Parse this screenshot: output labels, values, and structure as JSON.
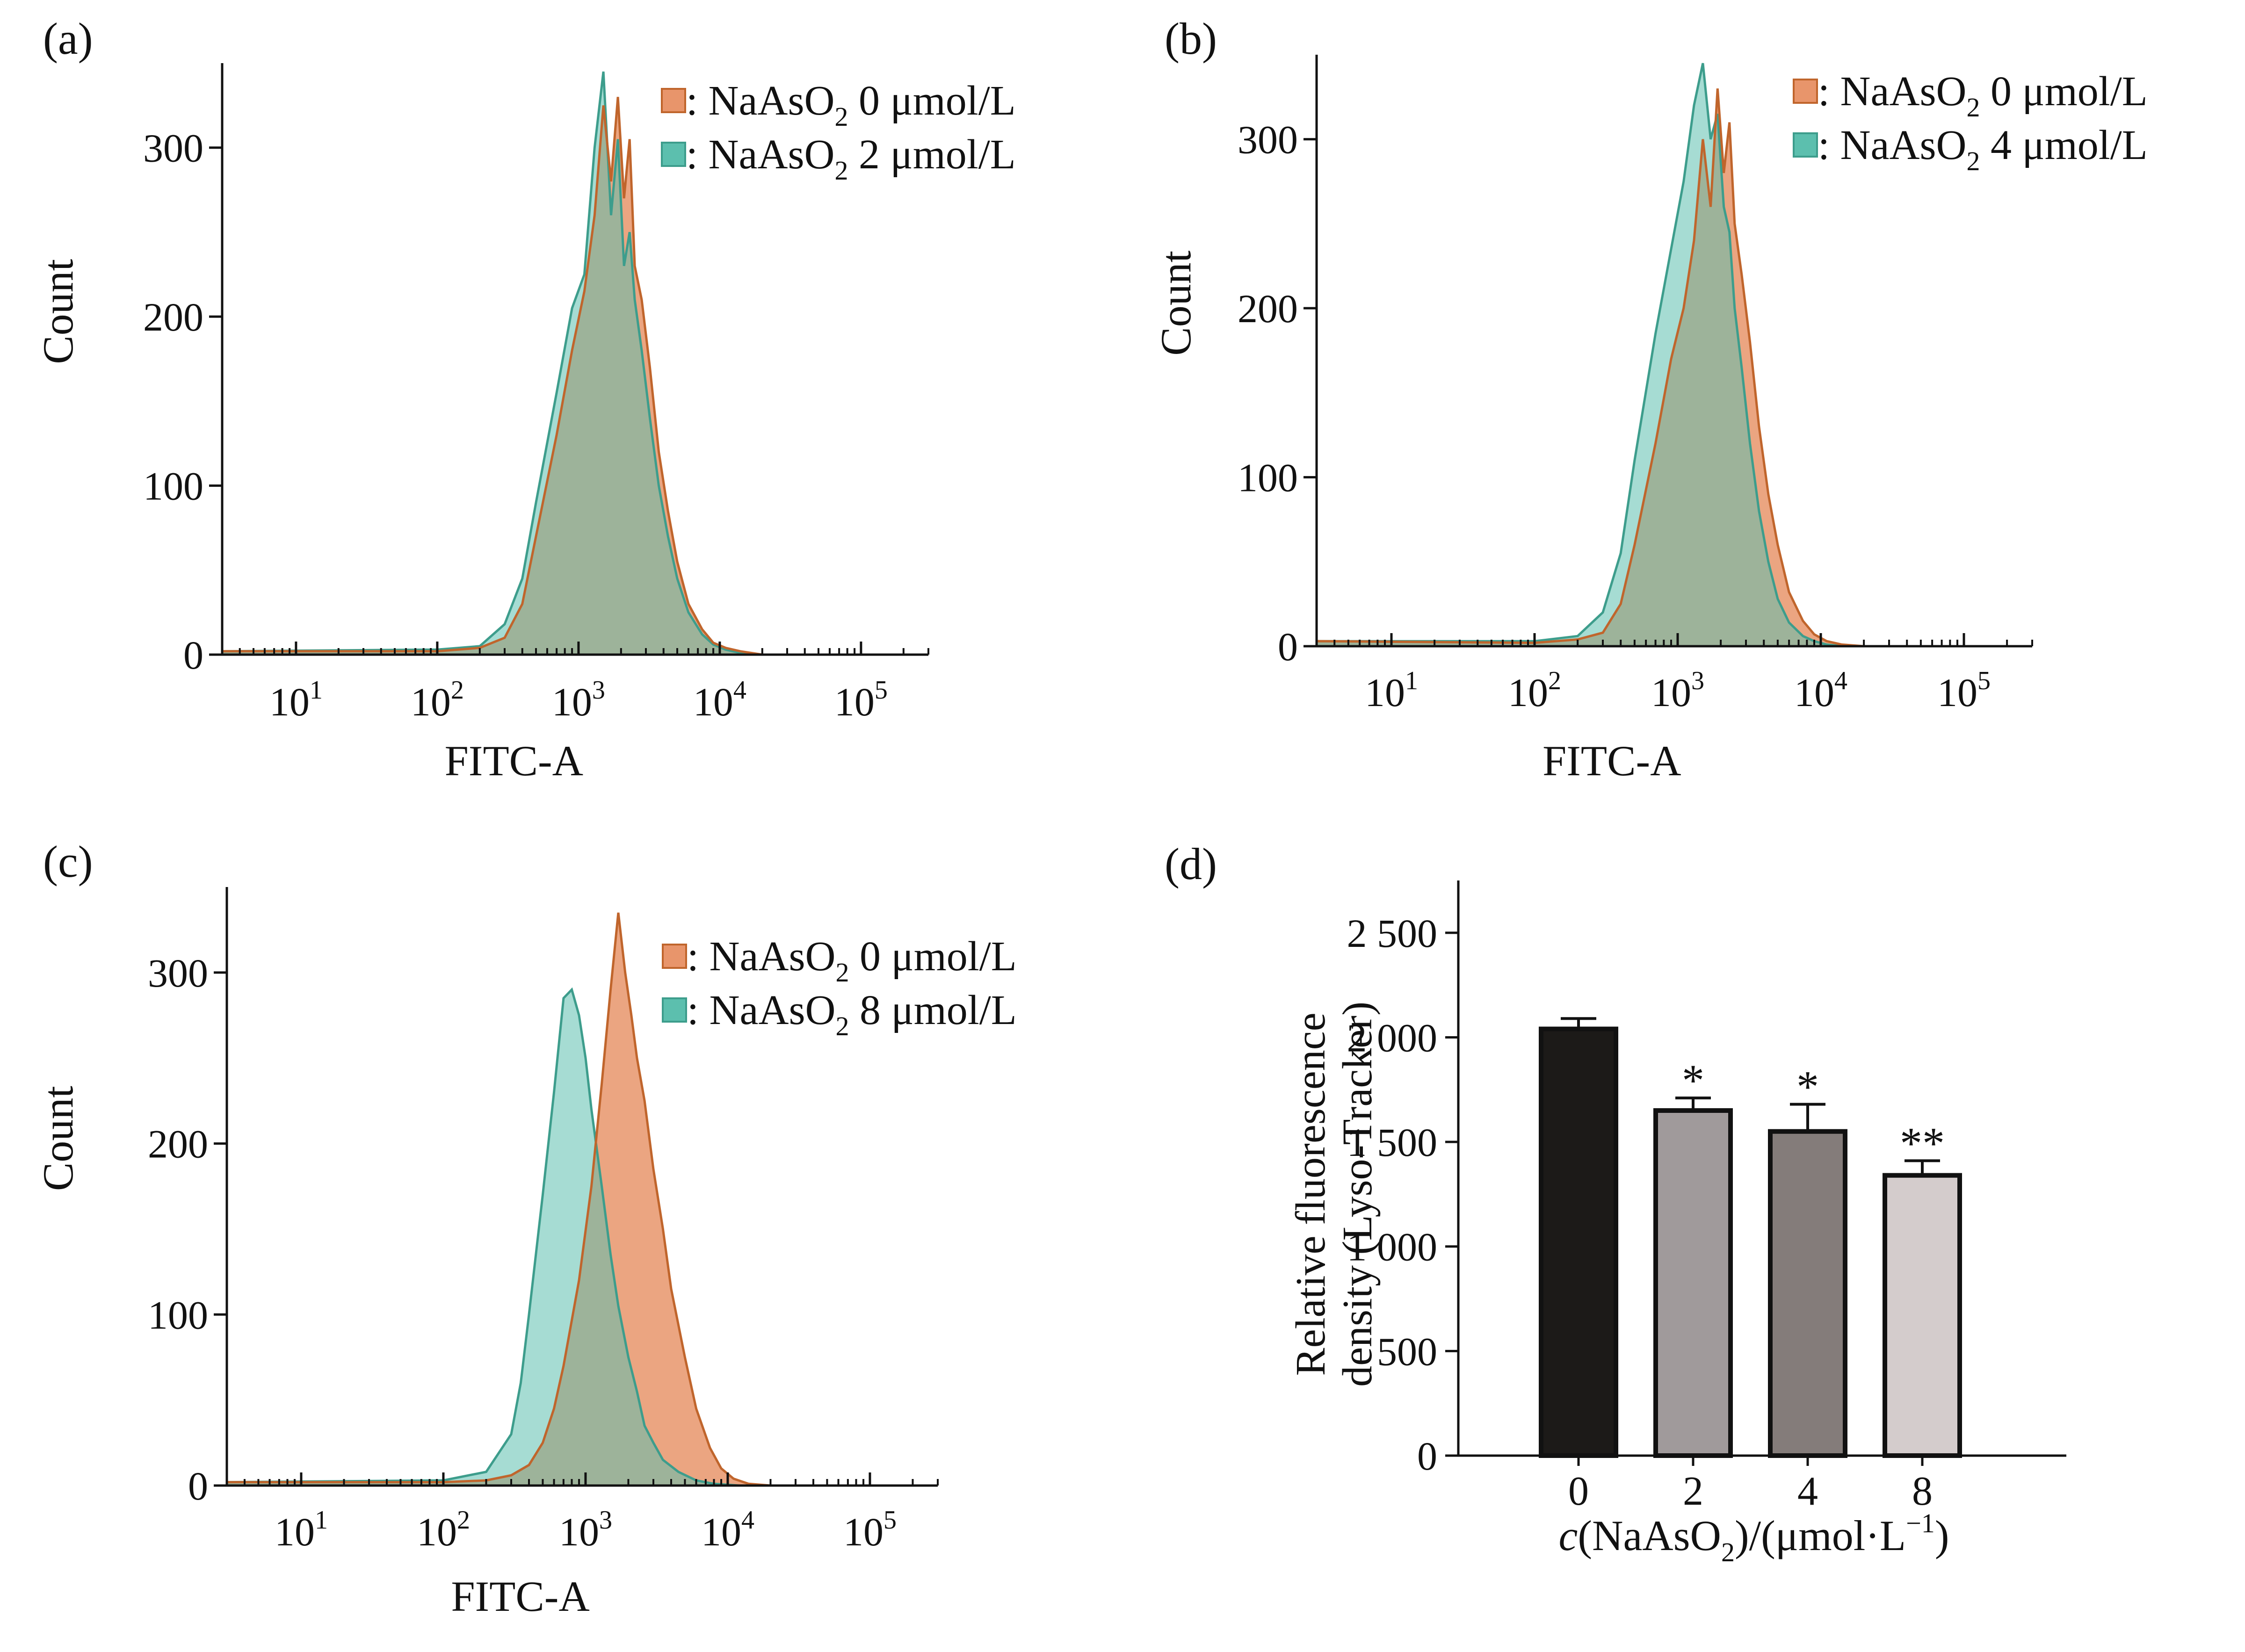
{
  "colors": {
    "control": "#e8956b",
    "control_edge": "#c0652c",
    "treated": "#5cbfae",
    "treated_edge": "#3d9d8c",
    "overlap": "#9e9a72",
    "axis": "#111111",
    "bars": [
      "#1c1a18",
      "#a09a9b",
      "#847c7a",
      "#d4cccc"
    ]
  },
  "chart_data": [
    {
      "type": "area",
      "panel_label": "(a)",
      "xlabel": "FITC-A",
      "ylabel": "Count",
      "x_scale": "log",
      "xlim": [
        3,
        300000
      ],
      "ylim": [
        0,
        350
      ],
      "x_ticks": [
        10,
        100,
        1000,
        10000,
        100000
      ],
      "x_tick_labels": [
        {
          "base": "10",
          "exp": "1"
        },
        {
          "base": "10",
          "exp": "2"
        },
        {
          "base": "10",
          "exp": "3"
        },
        {
          "base": "10",
          "exp": "4"
        },
        {
          "base": "10",
          "exp": "5"
        }
      ],
      "y_ticks": [
        0,
        100,
        200,
        300
      ],
      "legend": "top-right",
      "series": [
        {
          "name": {
            "pre": ": NaAsO",
            "sub": "2",
            "post": " 0 μmol/L"
          },
          "role": "control",
          "x": [
            3,
            100,
            200,
            300,
            400,
            500,
            700,
            900,
            1100,
            1300,
            1500,
            1700,
            1900,
            2100,
            2300,
            2500,
            2800,
            3200,
            3700,
            4300,
            5000,
            6000,
            7500,
            9000,
            11000,
            14000,
            20000
          ],
          "y": [
            2,
            2,
            4,
            10,
            30,
            70,
            130,
            180,
            215,
            260,
            325,
            280,
            330,
            270,
            305,
            230,
            210,
            170,
            120,
            85,
            55,
            30,
            15,
            7,
            4,
            2,
            0
          ]
        },
        {
          "name": {
            "pre": ": NaAsO",
            "sub": "2",
            "post": " 2 μmol/L"
          },
          "role": "treated",
          "x": [
            3,
            100,
            200,
            300,
            400,
            500,
            700,
            900,
            1100,
            1300,
            1500,
            1700,
            1900,
            2100,
            2300,
            2500,
            2800,
            3200,
            3700,
            4300,
            5000,
            6000,
            7500,
            9000,
            11000,
            14000,
            20000
          ],
          "y": [
            2,
            3,
            5,
            18,
            45,
            90,
            155,
            205,
            225,
            300,
            345,
            260,
            305,
            230,
            250,
            210,
            180,
            140,
            100,
            70,
            45,
            25,
            12,
            6,
            3,
            1,
            0
          ]
        }
      ]
    },
    {
      "type": "area",
      "panel_label": "(b)",
      "xlabel": "FITC-A",
      "ylabel": "Count",
      "x_scale": "log",
      "xlim": [
        3,
        300000
      ],
      "ylim": [
        0,
        350
      ],
      "x_ticks": [
        10,
        100,
        1000,
        10000,
        100000
      ],
      "x_tick_labels": [
        {
          "base": "10",
          "exp": "1"
        },
        {
          "base": "10",
          "exp": "2"
        },
        {
          "base": "10",
          "exp": "3"
        },
        {
          "base": "10",
          "exp": "4"
        },
        {
          "base": "10",
          "exp": "5"
        }
      ],
      "y_ticks": [
        0,
        100,
        200,
        300
      ],
      "legend": "top-right",
      "series": [
        {
          "name": {
            "pre": ": NaAsO",
            "sub": "2",
            "post": " 0 μmol/L"
          },
          "role": "control",
          "x": [
            3,
            100,
            200,
            300,
            400,
            500,
            700,
            900,
            1100,
            1300,
            1500,
            1700,
            1900,
            2100,
            2300,
            2500,
            2800,
            3200,
            3700,
            4300,
            5000,
            6000,
            7500,
            9000,
            11000,
            14000,
            20000
          ],
          "y": [
            3,
            2,
            4,
            8,
            25,
            60,
            120,
            170,
            200,
            240,
            300,
            260,
            330,
            280,
            310,
            250,
            220,
            180,
            130,
            90,
            60,
            32,
            15,
            7,
            3,
            1,
            0
          ]
        },
        {
          "name": {
            "pre": ": NaAsO",
            "sub": "2",
            "post": " 4 μmol/L"
          },
          "role": "treated",
          "x": [
            3,
            100,
            200,
            300,
            400,
            500,
            700,
            900,
            1100,
            1300,
            1500,
            1700,
            1900,
            2100,
            2300,
            2500,
            2800,
            3200,
            3700,
            4300,
            5000,
            6000,
            7500,
            9000,
            11000,
            14000,
            20000
          ],
          "y": [
            3,
            3,
            6,
            20,
            55,
            110,
            185,
            235,
            275,
            320,
            345,
            300,
            315,
            260,
            245,
            200,
            165,
            120,
            80,
            50,
            28,
            14,
            6,
            3,
            1,
            0,
            0
          ]
        }
      ]
    },
    {
      "type": "area",
      "panel_label": "(c)",
      "xlabel": "FITC-A",
      "ylabel": "Count",
      "x_scale": "log",
      "xlim": [
        3,
        300000
      ],
      "ylim": [
        0,
        350
      ],
      "x_ticks": [
        10,
        100,
        1000,
        10000,
        100000
      ],
      "x_tick_labels": [
        {
          "base": "10",
          "exp": "1"
        },
        {
          "base": "10",
          "exp": "2"
        },
        {
          "base": "10",
          "exp": "3"
        },
        {
          "base": "10",
          "exp": "4"
        },
        {
          "base": "10",
          "exp": "5"
        }
      ],
      "y_ticks": [
        0,
        100,
        200,
        300
      ],
      "legend": "top-right",
      "series": [
        {
          "name": {
            "pre": ": NaAsO",
            "sub": "2",
            "post": " 0 μmol/L"
          },
          "role": "control",
          "x": [
            3,
            100,
            200,
            300,
            400,
            500,
            600,
            700,
            900,
            1100,
            1300,
            1500,
            1700,
            1900,
            2100,
            2300,
            2600,
            3000,
            3500,
            4000,
            5000,
            6000,
            7500,
            9000,
            11000,
            14000,
            20000
          ],
          "y": [
            2,
            2,
            3,
            6,
            12,
            25,
            45,
            70,
            120,
            175,
            235,
            290,
            335,
            300,
            275,
            250,
            225,
            185,
            150,
            115,
            75,
            45,
            22,
            10,
            4,
            1,
            0
          ]
        },
        {
          "name": {
            "pre": ": NaAsO",
            "sub": "2",
            "post": " 8 μmol/L"
          },
          "role": "treated",
          "x": [
            3,
            100,
            200,
            300,
            350,
            400,
            500,
            600,
            700,
            800,
            900,
            1000,
            1100,
            1300,
            1500,
            1700,
            2000,
            2300,
            2600,
            3000,
            3500,
            4500,
            6000,
            8000,
            12000,
            20000
          ],
          "y": [
            2,
            3,
            8,
            30,
            60,
            100,
            170,
            230,
            285,
            290,
            275,
            250,
            220,
            175,
            135,
            105,
            75,
            55,
            35,
            25,
            15,
            8,
            3,
            1,
            0,
            0
          ]
        }
      ]
    },
    {
      "type": "bar",
      "panel_label": "(d)",
      "categories": [
        "0",
        "2",
        "4",
        "8"
      ],
      "values": [
        2040,
        1650,
        1550,
        1340
      ],
      "errors": [
        50,
        60,
        130,
        70
      ],
      "significance": [
        "",
        "*",
        "*",
        "**"
      ],
      "ylim": [
        0,
        2750
      ],
      "y_ticks": [
        0,
        500,
        1000,
        1500,
        2000,
        2500
      ],
      "y_tick_labels": [
        "0",
        "500",
        "1 000",
        "1 500",
        "2 000",
        "2 500"
      ],
      "ylabel_lines": [
        "Relative fluorescence",
        "density (Lyso-Tracker)"
      ],
      "xlabel": {
        "italic": "c",
        "pre": "(NaAsO",
        "sub": "2",
        "mid": ")/(μmol·L",
        "sup": "−1",
        "post": ")"
      }
    }
  ]
}
